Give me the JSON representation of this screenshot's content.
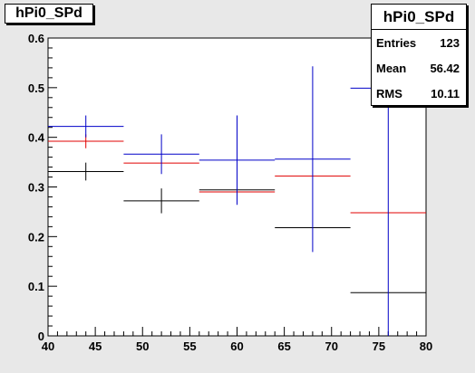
{
  "title": "hPi0_SPd",
  "stats": {
    "name": "hPi0_SPd",
    "rows": [
      {
        "label": "Entries",
        "value": "123"
      },
      {
        "label": "Mean",
        "value": "56.42"
      },
      {
        "label": "RMS",
        "value": "10.11"
      }
    ]
  },
  "colors": {
    "black": "#000000",
    "red": "#e00000",
    "blue": "#0000c8",
    "frame_bg": "#ffffff",
    "canvas_bg": "#e8e8e8"
  },
  "chart_data": {
    "type": "scatter",
    "title": "hPi0_SPd",
    "xlim": [
      40,
      80
    ],
    "ylim": [
      0,
      0.6
    ],
    "xticks": [
      40,
      45,
      50,
      55,
      60,
      65,
      70,
      75,
      80
    ],
    "yticks": [
      0,
      0.1,
      0.2,
      0.3,
      0.4,
      0.5,
      0.6
    ],
    "ytick_labels": [
      "0",
      "0.1",
      "0.2",
      "0.3",
      "0.4",
      "0.5",
      "0.6"
    ],
    "grid": false,
    "series": [
      {
        "color": "black",
        "points": [
          {
            "x": 44,
            "xerr": 4,
            "y": 0.331,
            "yerr": 0.018
          },
          {
            "x": 52,
            "xerr": 4,
            "y": 0.272,
            "yerr": 0.025
          },
          {
            "x": 60,
            "xerr": 4,
            "y": 0.294,
            "yerr": 0.0
          },
          {
            "x": 68,
            "xerr": 4,
            "y": 0.218,
            "yerr": 0.0
          },
          {
            "x": 76,
            "xerr": 4,
            "y": 0.087,
            "yerr": 0.0
          }
        ]
      },
      {
        "color": "red",
        "points": [
          {
            "x": 44,
            "xerr": 4,
            "y": 0.392,
            "yerr": 0.014
          },
          {
            "x": 52,
            "xerr": 4,
            "y": 0.348,
            "yerr": 0.0
          },
          {
            "x": 60,
            "xerr": 4,
            "y": 0.29,
            "yerr": 0.0
          },
          {
            "x": 68,
            "xerr": 4,
            "y": 0.322,
            "yerr": 0.0
          },
          {
            "x": 76,
            "xerr": 4,
            "y": 0.248,
            "yerr": 0.0
          }
        ]
      },
      {
        "color": "blue",
        "points": [
          {
            "x": 44,
            "xerr": 4,
            "y": 0.422,
            "yerr": 0.022
          },
          {
            "x": 52,
            "xerr": 4,
            "y": 0.366,
            "yerr": 0.04
          },
          {
            "x": 60,
            "xerr": 4,
            "y": 0.354,
            "yerr": 0.09
          },
          {
            "x": 68,
            "xerr": 4,
            "y": 0.356,
            "yerr": 0.187
          },
          {
            "x": 76,
            "xerr": 4,
            "y": 0.499,
            "yerr": 0.5
          }
        ]
      }
    ]
  }
}
